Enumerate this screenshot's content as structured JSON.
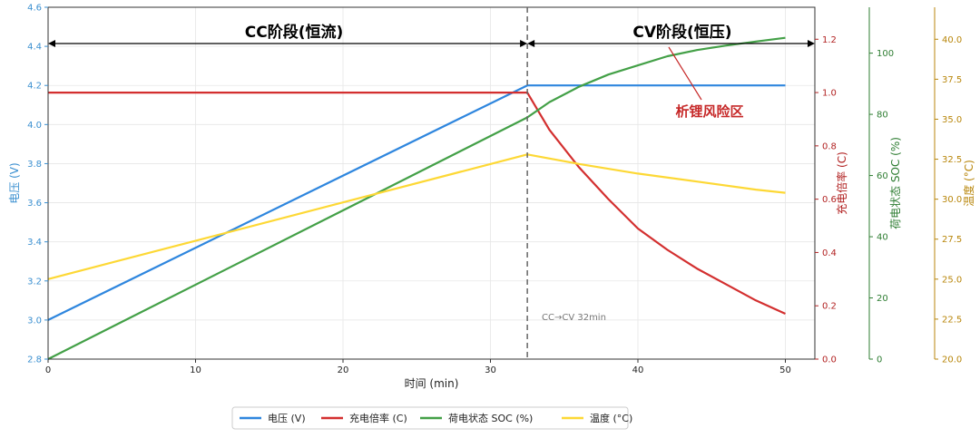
{
  "chart_data": {
    "type": "line",
    "xlabel": "时间 (min)",
    "xlim": [
      0,
      52
    ],
    "xticks": [
      0,
      10,
      20,
      30,
      40,
      50
    ],
    "axes": {
      "voltage": {
        "label": "电压 (V)",
        "lim": [
          2.8,
          4.6
        ],
        "ticks": [
          "2.8",
          "3.0",
          "3.2",
          "3.4",
          "3.6",
          "3.8",
          "4.0",
          "4.2",
          "4.4",
          "4.6"
        ],
        "color": "#2e86de"
      },
      "crate": {
        "label": "充电倍率 (C)",
        "lim": [
          0,
          1.32
        ],
        "ticks": [
          "0.0",
          "0.2",
          "0.4",
          "0.6",
          "0.8",
          "1.0",
          "1.2"
        ],
        "color": "#b22222"
      },
      "soc": {
        "label": "荷电状态 SOC (%)",
        "lim": [
          0,
          115
        ],
        "ticks": [
          "0",
          "20",
          "40",
          "60",
          "80",
          "100"
        ],
        "color": "#2e7d32"
      },
      "temp": {
        "label": "温度 (°C)",
        "lim": [
          20,
          42
        ],
        "ticks": [
          "20.0",
          "22.5",
          "25.0",
          "27.5",
          "30.0",
          "32.5",
          "35.0",
          "37.5",
          "40.0"
        ],
        "color": "#b8860b"
      }
    },
    "series": [
      {
        "name": "电压 (V)",
        "axis": "voltage",
        "color": "#2e86de",
        "x": [
          0,
          32.5,
          50
        ],
        "y": [
          3.0,
          4.2,
          4.2
        ]
      },
      {
        "name": "充电倍率 (C)",
        "axis": "crate",
        "color": "#d32f2f",
        "x": [
          0,
          32.5,
          34,
          36,
          38,
          40,
          42,
          44,
          46,
          48,
          50
        ],
        "y": [
          1.0,
          1.0,
          0.86,
          0.72,
          0.6,
          0.49,
          0.41,
          0.34,
          0.28,
          0.22,
          0.17
        ]
      },
      {
        "name": "荷电状态 SOC (%)",
        "axis": "soc",
        "color": "#43a047",
        "x": [
          0,
          32.5,
          34,
          36,
          38,
          40,
          42,
          44,
          46,
          48,
          50
        ],
        "y": [
          0,
          79,
          84,
          89,
          93,
          96,
          99,
          101,
          102.5,
          103.8,
          105
        ]
      },
      {
        "name": "温度 (°C)",
        "axis": "temp",
        "color": "#fdd835",
        "x": [
          0,
          32.5,
          36,
          40,
          44,
          48,
          50
        ],
        "y": [
          25.0,
          32.8,
          32.2,
          31.6,
          31.1,
          30.6,
          30.4
        ]
      }
    ],
    "annotations": {
      "transition_x": 32.5,
      "transition_label": "CC→CV 32min",
      "cc_label": "CC阶段(恒流)",
      "cv_label": "CV阶段(恒压)",
      "risk_label": "析锂风险区",
      "risk_color": "#c62828"
    },
    "legend_position": "bottom-center",
    "grid": true
  }
}
